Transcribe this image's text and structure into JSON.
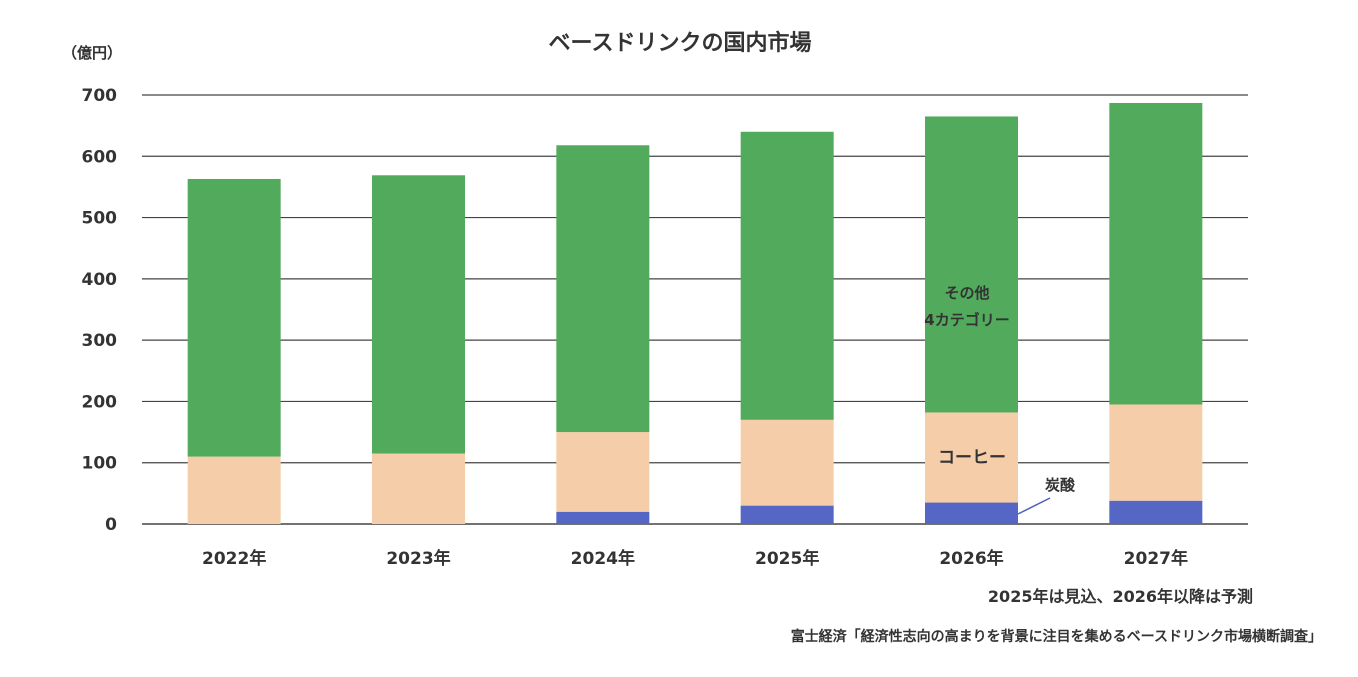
{
  "chart_data": {
    "type": "bar",
    "stacked": true,
    "title": "ベースドリンクの国内市場",
    "unit_label": "（億円）",
    "ylim": [
      0,
      700
    ],
    "yticks": [
      "0",
      "100",
      "200",
      "300",
      "400",
      "500",
      "600",
      "700"
    ],
    "categories": [
      "2022年",
      "2023年",
      "2024年",
      "2025年",
      "2026年",
      "2027年"
    ],
    "series": [
      {
        "name": "炭酸",
        "color": "#5566c4",
        "values": [
          0,
          0,
          20,
          30,
          35,
          38
        ]
      },
      {
        "name": "コーヒー",
        "color": "#f6cda9",
        "values": [
          110,
          115,
          130,
          140,
          147,
          157
        ]
      },
      {
        "name": "その他4カテゴリー",
        "color": "#52ab5c",
        "values": [
          453,
          454,
          468,
          470,
          483,
          492
        ]
      }
    ],
    "annotations": {
      "other_line1": "その他",
      "other_line2": "4カテゴリー",
      "coffee": "コーヒー",
      "soda": "炭酸"
    },
    "note": "2025年は見込、2026年以降は予測",
    "source": "富士経済「経済性志向の高まりを背景に注目を集めるベースドリンク市場横断調査」"
  }
}
